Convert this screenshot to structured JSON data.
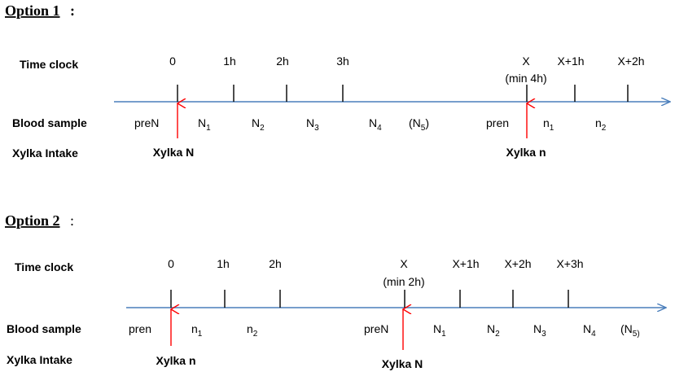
{
  "colors": {
    "axis": "#4a7ebb",
    "arrow": "#ff0000",
    "text": "#000000"
  },
  "options": [
    {
      "title": "Option 1",
      "title_suffix": ":",
      "row_labels": {
        "time": "Time clock",
        "blood": "Blood sample",
        "intake": "Xylka Intake"
      },
      "time_labels": [
        {
          "text": "0"
        },
        {
          "text": "1h"
        },
        {
          "text": "2h"
        },
        {
          "text": "3h"
        },
        {
          "text": "X",
          "note": "(min 4h)"
        },
        {
          "text": "X+1h"
        },
        {
          "text": "X+2h"
        }
      ],
      "blood_samples": [
        {
          "base": "preN",
          "sub": ""
        },
        {
          "base": "N",
          "sub": "1"
        },
        {
          "base": "N",
          "sub": "2"
        },
        {
          "base": "N",
          "sub": "3"
        },
        {
          "base": "N",
          "sub": "4"
        },
        {
          "base": "(N",
          "sub": "5",
          "post": ")"
        },
        {
          "base": "pren",
          "sub": ""
        },
        {
          "base": "n",
          "sub": "1"
        },
        {
          "base": "n",
          "sub": "2"
        }
      ],
      "intakes": [
        {
          "label": "Xylka N"
        },
        {
          "label": "Xylka n"
        }
      ]
    },
    {
      "title": "Option 2",
      "title_suffix": ":",
      "row_labels": {
        "time": "Time clock",
        "blood": "Blood sample",
        "intake": "Xylka Intake"
      },
      "time_labels": [
        {
          "text": "0"
        },
        {
          "text": "1h"
        },
        {
          "text": "2h"
        },
        {
          "text": "X",
          "note": "(min 2h)"
        },
        {
          "text": "X+1h"
        },
        {
          "text": "X+2h"
        },
        {
          "text": "X+3h"
        }
      ],
      "blood_samples": [
        {
          "base": "pren",
          "sub": ""
        },
        {
          "base": "n",
          "sub": "1"
        },
        {
          "base": "n",
          "sub": "2"
        },
        {
          "base": "preN",
          "sub": ""
        },
        {
          "base": "N",
          "sub": "1"
        },
        {
          "base": "N",
          "sub": "2"
        },
        {
          "base": "N",
          "sub": "3"
        },
        {
          "base": "N",
          "sub": "4"
        },
        {
          "base": "(N",
          "sub": "5)",
          "post": ""
        }
      ],
      "intakes": [
        {
          "label": "Xylka n"
        },
        {
          "label": "Xylka N"
        }
      ]
    }
  ]
}
